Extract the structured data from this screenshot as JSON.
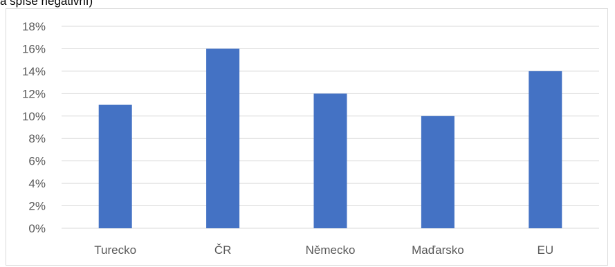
{
  "header_fragment": "a spíše negativní)",
  "chart_data": {
    "type": "bar",
    "categories": [
      "Turecko",
      "ČR",
      "Německo",
      "Maďarsko",
      "EU"
    ],
    "values": [
      11,
      16,
      12,
      10,
      14
    ],
    "unit": "%",
    "ylim": [
      0,
      18
    ],
    "yticks": [
      0,
      2,
      4,
      6,
      8,
      10,
      12,
      14,
      16,
      18
    ],
    "ytick_labels": [
      "0%",
      "2%",
      "4%",
      "6%",
      "8%",
      "10%",
      "12%",
      "14%",
      "16%",
      "18%"
    ],
    "title": "",
    "xlabel": "",
    "ylabel": "",
    "grid": true,
    "bar_color": "#4472c4",
    "grid_color": "#d9d9d9"
  }
}
